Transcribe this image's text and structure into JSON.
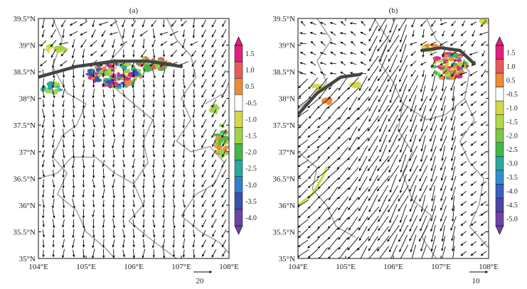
{
  "chart_data": [
    {
      "type": "vector-field",
      "panel_label": "(a)",
      "x_ticks": [
        "104°E",
        "105°E",
        "106°E",
        "107°E",
        "108°E"
      ],
      "y_ticks": [
        "35°N",
        "35.5°N",
        "36°N",
        "36.5°N",
        "37°N",
        "37.5°N",
        "38°N",
        "38.5°N",
        "39°N",
        "39.5°N"
      ],
      "xlim": [
        104,
        108
      ],
      "ylim": [
        35,
        39.5
      ],
      "colorbar": {
        "labels": [
          "1.5",
          "1.0",
          "0.5",
          "-0.5",
          "-1.0",
          "-1.5",
          "-2.0",
          "-2.5",
          "-3.0",
          "-3.5",
          "-4.0"
        ],
        "colors": [
          "#e0207e",
          "#e85a5a",
          "#ec8a3a",
          "#ffffff",
          "#d2d84a",
          "#9fd24a",
          "#42b84a",
          "#2aa8a0",
          "#2f7fd0",
          "#3a4fb0",
          "#6d45a8"
        ]
      },
      "reference_vector": "20",
      "front_line": [
        [
          104.0,
          38.4
        ],
        [
          104.8,
          38.6
        ],
        [
          105.6,
          38.7
        ],
        [
          106.3,
          38.7
        ],
        [
          107.0,
          38.6
        ]
      ],
      "shaded_regions": [
        {
          "lon": 105.6,
          "lat": 38.45,
          "r": [
            0.55,
            0.25
          ],
          "levels": [
            "-1.5",
            "-2.5",
            "-3.5",
            "0.5",
            "1.5"
          ]
        },
        {
          "lon": 104.35,
          "lat": 38.95,
          "r": [
            0.25,
            0.08
          ],
          "levels": [
            "-1.0",
            "-1.5"
          ]
        },
        {
          "lon": 104.3,
          "lat": 38.2,
          "r": [
            0.2,
            0.1
          ],
          "levels": [
            "-1.5",
            "-2.5"
          ]
        },
        {
          "lon": 106.4,
          "lat": 38.65,
          "r": [
            0.35,
            0.12
          ],
          "levels": [
            "-1.5",
            "-2.0",
            "1.0"
          ]
        },
        {
          "lon": 107.85,
          "lat": 37.2,
          "r": [
            0.12,
            0.3
          ],
          "levels": [
            "-1.5",
            "-2.0",
            "0.5"
          ]
        },
        {
          "lon": 107.7,
          "lat": 37.8,
          "r": [
            0.06,
            0.06
          ],
          "levels": [
            "-1.5"
          ]
        }
      ]
    },
    {
      "type": "vector-field",
      "panel_label": "(b)",
      "x_ticks": [
        "104°E",
        "105°E",
        "106°E",
        "107°E",
        "108°E"
      ],
      "y_ticks": [
        "35°N",
        "35.5°N",
        "36°N",
        "36.5°N",
        "37°N",
        "37.5°N",
        "38°N",
        "38.5°N",
        "39°N",
        "39.5°N"
      ],
      "xlim": [
        104,
        108
      ],
      "ylim": [
        35,
        39.5
      ],
      "colorbar": {
        "labels": [
          "1.5",
          "1.0",
          "0.5",
          "-0.5",
          "-1.0",
          "-1.5",
          "-2.0",
          "-2.5",
          "-3.0",
          "-3.5",
          "-4.0",
          "-4.5",
          "-5.0"
        ],
        "colors": [
          "#e0207e",
          "#e85a5a",
          "#ec8a3a",
          "#ffffff",
          "#d2d84a",
          "#b4d84a",
          "#7cc64a",
          "#42b84a",
          "#2aa8a0",
          "#2f90d0",
          "#3a5fc0",
          "#4a45a8",
          "#6d45a8"
        ]
      },
      "reference_vector": "10",
      "front_line": [
        [
          104.0,
          37.7
        ],
        [
          104.4,
          38.1
        ],
        [
          104.9,
          38.4
        ],
        [
          105.3,
          38.45
        ]
      ],
      "front_line_2": [
        [
          106.6,
          38.9
        ],
        [
          107.0,
          38.95
        ],
        [
          107.4,
          38.9
        ],
        [
          107.7,
          38.65
        ]
      ],
      "shaded_regions": [
        {
          "lon": 107.2,
          "lat": 38.6,
          "r": [
            0.35,
            0.25
          ],
          "levels": [
            "-1.5",
            "-2.5",
            "-3.5",
            "1.5",
            "0.5"
          ]
        },
        {
          "lon": 106.75,
          "lat": 38.95,
          "r": [
            0.15,
            0.06
          ],
          "levels": [
            "-1.0",
            "0.5"
          ]
        },
        {
          "lon": 104.4,
          "lat": 38.2,
          "r": [
            0.15,
            0.05
          ],
          "levels": [
            "-1.0"
          ]
        },
        {
          "lon": 105.2,
          "lat": 38.25,
          "r": [
            0.08,
            0.04
          ],
          "levels": [
            "-1.0"
          ]
        },
        {
          "lon": 104.6,
          "lat": 37.95,
          "r": [
            0.08,
            0.04
          ],
          "levels": [
            "0.5"
          ]
        },
        {
          "lon": 107.9,
          "lat": 39.45,
          "r": [
            0.08,
            0.04
          ],
          "levels": [
            "-1.0"
          ]
        }
      ],
      "yellow_band": [
        [
          104.0,
          36.0
        ],
        [
          104.3,
          36.2
        ],
        [
          104.5,
          36.5
        ],
        [
          104.6,
          36.7
        ]
      ]
    }
  ]
}
